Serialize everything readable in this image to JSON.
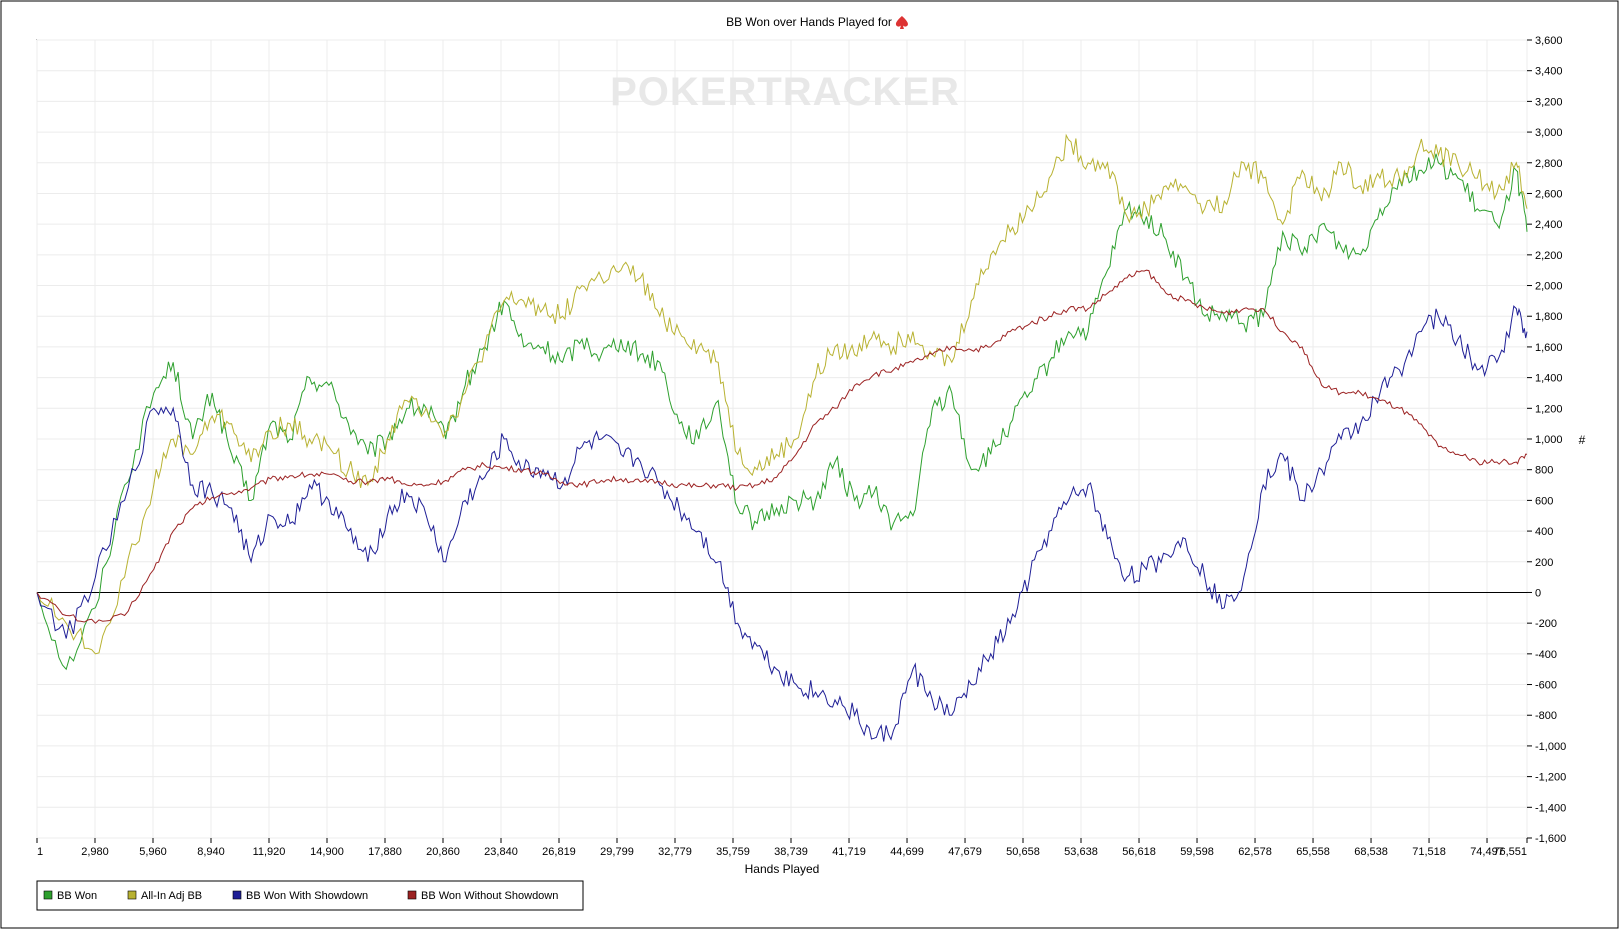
{
  "chart_data": {
    "type": "line",
    "title": "BB Won over Hands Played for",
    "watermark": "POKERTRACKER",
    "xlabel": "Hands Played",
    "ylabel": "#",
    "xlim": [
      1,
      76551
    ],
    "ylim": [
      -1600,
      3600
    ],
    "xticks": [
      "1",
      "2,980",
      "5,960",
      "8,940",
      "11,920",
      "14,900",
      "17,880",
      "20,860",
      "23,840",
      "26,819",
      "29,799",
      "32,779",
      "35,759",
      "38,739",
      "41,719",
      "44,699",
      "47,679",
      "50,658",
      "53,638",
      "56,618",
      "59,598",
      "62,578",
      "65,558",
      "68,538",
      "71,518",
      "74,497",
      "76,551"
    ],
    "yticks": [
      "3,600",
      "3,400",
      "3,200",
      "3,000",
      "2,800",
      "2,600",
      "2,400",
      "2,200",
      "2,000",
      "1,800",
      "1,600",
      "1,400",
      "1,200",
      "1,000",
      "800",
      "600",
      "400",
      "200",
      "0",
      "-200",
      "-400",
      "-600",
      "-800",
      "-1,000",
      "-1,200",
      "-1,400",
      "-1,600"
    ],
    "grid": true,
    "legend_position": "bottom-left",
    "x": [
      1,
      1500,
      3000,
      4500,
      6000,
      7000,
      8000,
      9000,
      10000,
      11000,
      12000,
      13000,
      14000,
      15000,
      16000,
      17000,
      18000,
      19000,
      20000,
      21000,
      22000,
      23000,
      24000,
      25000,
      26000,
      27000,
      28000,
      29000,
      30000,
      31000,
      32000,
      33000,
      34000,
      35000,
      36000,
      37000,
      38000,
      39000,
      40000,
      41000,
      42000,
      43000,
      44000,
      45000,
      46000,
      47000,
      48000,
      49000,
      50000,
      51000,
      52000,
      53000,
      54000,
      55000,
      56000,
      57000,
      58000,
      59000,
      60000,
      61000,
      62000,
      63000,
      64000,
      65000,
      66000,
      67000,
      68000,
      69000,
      70000,
      71000,
      72000,
      73000,
      74000,
      75000,
      76000,
      76551
    ],
    "series": [
      {
        "name": "BB Won",
        "color": "#2ea02e",
        "values": [
          0,
          -500,
          -100,
          700,
          1300,
          1500,
          1000,
          1300,
          900,
          600,
          1100,
          1000,
          1400,
          1350,
          1100,
          900,
          1000,
          1200,
          1200,
          1000,
          1350,
          1600,
          1900,
          1600,
          1600,
          1500,
          1650,
          1550,
          1650,
          1550,
          1500,
          1100,
          1000,
          1250,
          550,
          450,
          550,
          600,
          600,
          850,
          600,
          650,
          450,
          500,
          1200,
          1300,
          800,
          900,
          1100,
          1300,
          1500,
          1700,
          1700,
          2100,
          2500,
          2450,
          2300,
          2050,
          1800,
          1800,
          1750,
          1800,
          2350,
          2200,
          2400,
          2250,
          2200,
          2500,
          2700,
          2750,
          2800,
          2700,
          2500,
          2400,
          2750,
          2350
        ]
      },
      {
        "name": "All-In Adj BB",
        "color": "#b8b232",
        "values": [
          0,
          -200,
          -400,
          100,
          700,
          1000,
          900,
          1150,
          1100,
          850,
          1050,
          1100,
          1000,
          950,
          800,
          700,
          1000,
          1250,
          1200,
          1050,
          1300,
          1600,
          1900,
          1900,
          1850,
          1800,
          2000,
          2050,
          2100,
          2050,
          1800,
          1700,
          1600,
          1500,
          900,
          800,
          900,
          1000,
          1400,
          1600,
          1550,
          1700,
          1600,
          1700,
          1550,
          1500,
          1900,
          2200,
          2350,
          2500,
          2700,
          2950,
          2800,
          2800,
          2450,
          2500,
          2650,
          2650,
          2500,
          2550,
          2800,
          2700,
          2400,
          2750,
          2550,
          2800,
          2650,
          2700,
          2700,
          2900,
          2850,
          2800,
          2700,
          2600,
          2800,
          2500
        ]
      },
      {
        "name": "BB Won With Showdown",
        "color": "#1f1f96",
        "values": [
          0,
          -300,
          100,
          600,
          1200,
          1200,
          700,
          650,
          550,
          200,
          500,
          450,
          700,
          600,
          400,
          200,
          500,
          650,
          500,
          200,
          600,
          750,
          1000,
          800,
          800,
          700,
          950,
          1000,
          900,
          850,
          700,
          550,
          400,
          200,
          -200,
          -350,
          -500,
          -600,
          -650,
          -700,
          -800,
          -950,
          -900,
          -500,
          -700,
          -800,
          -600,
          -400,
          -200,
          100,
          400,
          600,
          700,
          350,
          100,
          150,
          250,
          350,
          100,
          -100,
          100,
          700,
          900,
          600,
          800,
          1000,
          1100,
          1300,
          1450,
          1700,
          1800,
          1650,
          1450,
          1500,
          1850,
          1700
        ]
      },
      {
        "name": "BB Won Without Showdown",
        "color": "#9c2323",
        "values": [
          0,
          -150,
          -200,
          -150,
          150,
          400,
          550,
          620,
          650,
          680,
          740,
          760,
          770,
          770,
          720,
          720,
          750,
          700,
          700,
          730,
          800,
          830,
          810,
          800,
          770,
          720,
          700,
          730,
          740,
          720,
          720,
          700,
          690,
          700,
          680,
          700,
          750,
          900,
          1100,
          1200,
          1350,
          1420,
          1450,
          1500,
          1550,
          1600,
          1580,
          1600,
          1700,
          1750,
          1800,
          1850,
          1850,
          1950,
          2050,
          2100,
          1950,
          1900,
          1850,
          1820,
          1850,
          1850,
          1700,
          1600,
          1350,
          1300,
          1300,
          1250,
          1200,
          1100,
          950,
          900,
          850,
          850,
          850,
          900
        ]
      }
    ]
  }
}
